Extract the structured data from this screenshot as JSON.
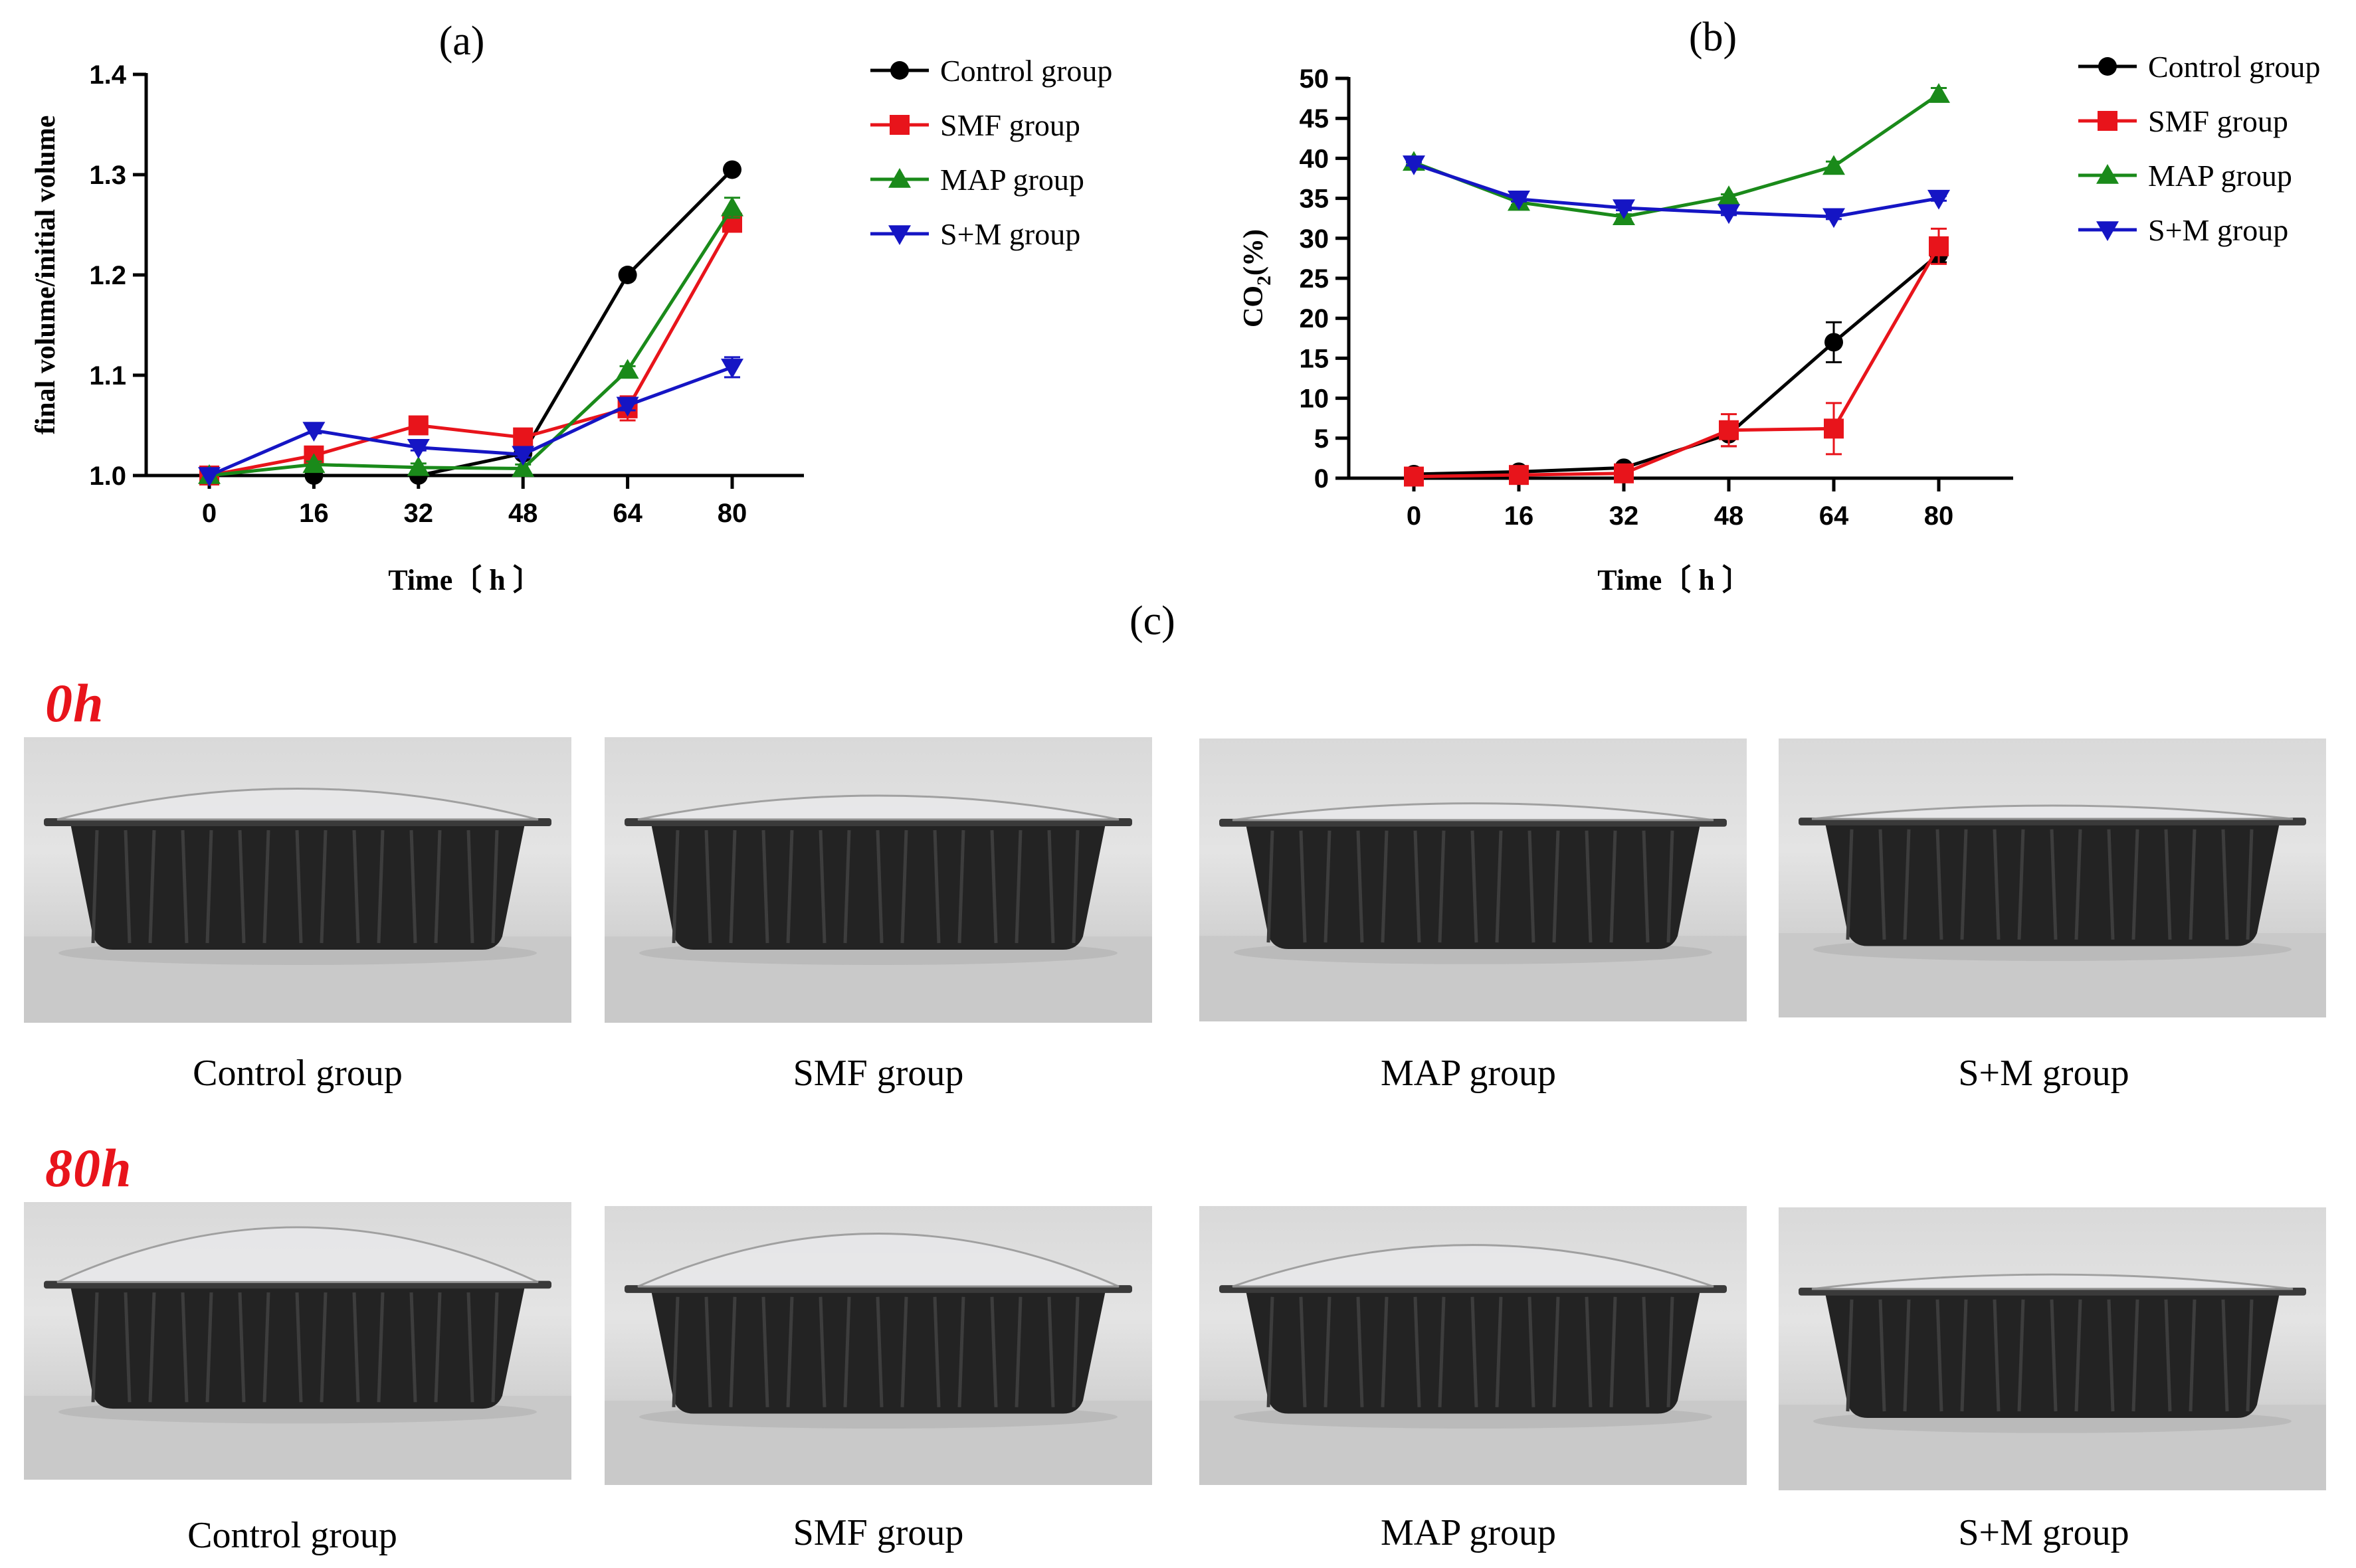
{
  "panel_c_title": "(c)",
  "chart_data": [
    {
      "id": "a",
      "type": "line",
      "title": "(a)",
      "xlabel": "Time〔 h 〕",
      "ylabel": "final volume/initial volume",
      "x": [
        0,
        16,
        32,
        48,
        64,
        80
      ],
      "x_ticks": [
        "0",
        "16",
        "32",
        "48",
        "64",
        "80"
      ],
      "ylim": [
        1.0,
        1.4
      ],
      "y_ticks": [
        "1.0",
        "1.1",
        "1.2",
        "1.3",
        "1.4"
      ],
      "y_tick_values": [
        1.0,
        1.1,
        1.2,
        1.3,
        1.4
      ],
      "legend_position": "right",
      "series": [
        {
          "name": "Control group",
          "color": "#000000",
          "marker": "circle",
          "values": [
            1.0,
            1.0,
            1.0,
            1.022,
            1.2,
            1.305
          ],
          "errors": [
            0,
            0,
            0,
            0.003,
            0.004,
            0.004
          ]
        },
        {
          "name": "SMF group",
          "color": "#e8141b",
          "marker": "square",
          "values": [
            1.0,
            1.02,
            1.05,
            1.038,
            1.067,
            1.252
          ],
          "errors": [
            0,
            0.003,
            0.003,
            0.004,
            0.012,
            0.006
          ]
        },
        {
          "name": "MAP group",
          "color": "#1a8a1a",
          "marker": "triangle-up",
          "values": [
            1.0,
            1.011,
            1.008,
            1.007,
            1.105,
            1.267
          ],
          "errors": [
            0,
            0.003,
            0.004,
            0.004,
            0.004,
            0.01
          ]
        },
        {
          "name": "S+M group",
          "color": "#1515c4",
          "marker": "triangle-down",
          "values": [
            1.0,
            1.045,
            1.028,
            1.021,
            1.07,
            1.108
          ],
          "errors": [
            0,
            0.003,
            0.003,
            0.003,
            0.005,
            0.01
          ]
        }
      ]
    },
    {
      "id": "b",
      "type": "line",
      "title": "(b)",
      "xlabel": "Time〔 h 〕",
      "ylabel_main": "CO",
      "ylabel_sub": "2",
      "ylabel_suffix": "(%)",
      "x": [
        0,
        16,
        32,
        48,
        64,
        80
      ],
      "x_ticks": [
        "0",
        "16",
        "32",
        "48",
        "64",
        "80"
      ],
      "ylim": [
        0,
        50
      ],
      "y_ticks": [
        "0",
        "5",
        "10",
        "15",
        "20",
        "25",
        "30",
        "35",
        "40",
        "45",
        "50"
      ],
      "y_tick_values": [
        0,
        5,
        10,
        15,
        20,
        25,
        30,
        35,
        40,
        45,
        50
      ],
      "legend_position": "right",
      "series": [
        {
          "name": "Control group",
          "color": "#000000",
          "marker": "circle",
          "values": [
            0.5,
            0.8,
            1.3,
            5.5,
            17,
            28
          ],
          "errors": [
            0,
            0.2,
            0.3,
            1.5,
            2.5,
            1.0
          ]
        },
        {
          "name": "SMF group",
          "color": "#e8141b",
          "marker": "square",
          "values": [
            0.2,
            0.4,
            0.6,
            6,
            6.2,
            29
          ],
          "errors": [
            0,
            0.2,
            0.3,
            2.0,
            3.2,
            2.2
          ]
        },
        {
          "name": "MAP group",
          "color": "#1a8a1a",
          "marker": "triangle-up",
          "values": [
            39.5,
            34.5,
            32.7,
            35.2,
            39,
            48
          ],
          "errors": [
            0.3,
            0.3,
            0.3,
            0.3,
            0.6,
            0.8
          ]
        },
        {
          "name": "S+M group",
          "color": "#1515c4",
          "marker": "triangle-down",
          "values": [
            39.3,
            34.9,
            33.8,
            33.2,
            32.7,
            35
          ],
          "errors": [
            0.2,
            0.3,
            0.3,
            0.3,
            0.3,
            0.3
          ]
        }
      ]
    }
  ],
  "photos": {
    "row_0h": {
      "label": "0h",
      "items": [
        {
          "caption": "Control group",
          "lid_bulge": 0.45
        },
        {
          "caption": "SMF group",
          "lid_bulge": 0.3
        },
        {
          "caption": "MAP group",
          "lid_bulge": 0.15
        },
        {
          "caption": "S+M group",
          "lid_bulge": 0.08
        }
      ]
    },
    "row_80h": {
      "label": "80h",
      "items": [
        {
          "caption": "Control group",
          "lid_bulge": 1.0
        },
        {
          "caption": "SMF group",
          "lid_bulge": 0.95
        },
        {
          "caption": "MAP group",
          "lid_bulge": 0.7
        },
        {
          "caption": "S+M group",
          "lid_bulge": 0.1
        }
      ]
    }
  }
}
